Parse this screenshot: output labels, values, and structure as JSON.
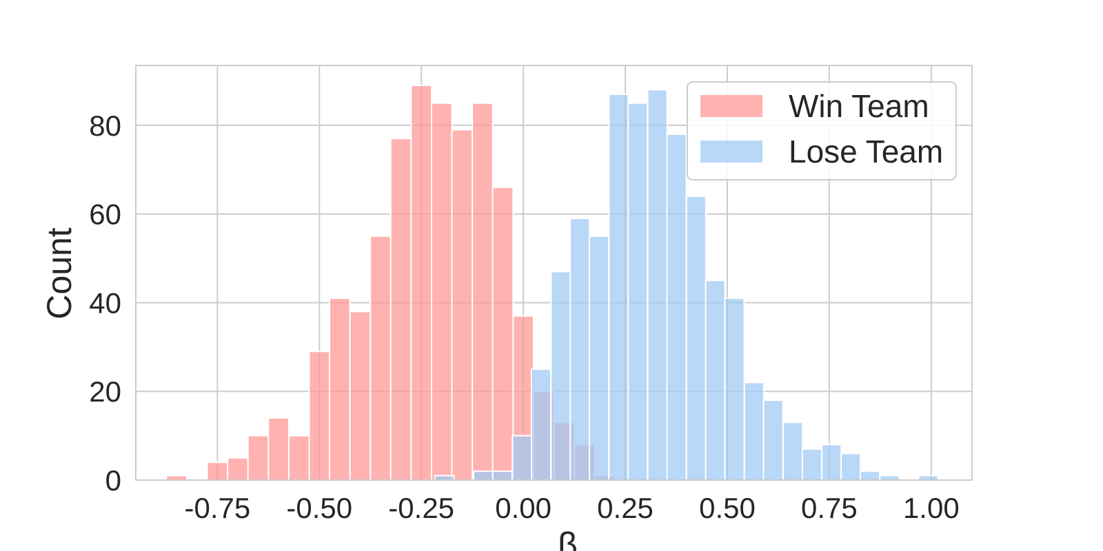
{
  "chart_data": {
    "type": "bar",
    "chart_kind": "overlaid histogram",
    "xlabel": "β",
    "ylabel": "Count",
    "xlim": [
      -0.95,
      1.1
    ],
    "ylim": [
      0,
      93.5
    ],
    "xticks": [
      -0.75,
      -0.5,
      -0.25,
      0.0,
      0.25,
      0.5,
      0.75,
      1.0
    ],
    "xtick_labels": [
      "-0.75",
      "-0.50",
      "-0.25",
      "0.00",
      "0.25",
      "0.50",
      "0.75",
      "1.00"
    ],
    "yticks": [
      0,
      20,
      40,
      60,
      80
    ],
    "ytick_labels": [
      "0",
      "20",
      "40",
      "60",
      "80"
    ],
    "grid": true,
    "legend_position": "top-right",
    "series": [
      {
        "name": "Win Team",
        "color": "#ff9896",
        "bin_width": 0.05,
        "bin_starts": [
          -0.875,
          -0.825,
          -0.775,
          -0.725,
          -0.675,
          -0.625,
          -0.575,
          -0.525,
          -0.475,
          -0.425,
          -0.375,
          -0.325,
          -0.275,
          -0.225,
          -0.175,
          -0.125,
          -0.075,
          -0.025,
          0.025,
          0.075,
          0.125,
          0.175
        ],
        "values": [
          1,
          0,
          4,
          5,
          10,
          14,
          10,
          29,
          41,
          38,
          55,
          77,
          89,
          85,
          79,
          85,
          66,
          37,
          20,
          13,
          8,
          1
        ]
      },
      {
        "name": "Lose Team",
        "color": "#a1c9f4",
        "bin_width": 0.0474,
        "bin_starts": [
          -0.217,
          -0.17,
          -0.122,
          -0.075,
          -0.027,
          0.02,
          0.068,
          0.115,
          0.162,
          0.21,
          0.257,
          0.305,
          0.352,
          0.4,
          0.447,
          0.494,
          0.542,
          0.589,
          0.637,
          0.684,
          0.732,
          0.779,
          0.826,
          0.874,
          0.921,
          0.969
        ],
        "values": [
          1,
          0,
          2,
          2,
          10,
          25,
          47,
          59,
          55,
          87,
          85,
          88,
          78,
          64,
          45,
          41,
          22,
          18,
          13,
          7,
          8,
          6,
          2,
          1,
          0,
          1
        ]
      }
    ]
  }
}
